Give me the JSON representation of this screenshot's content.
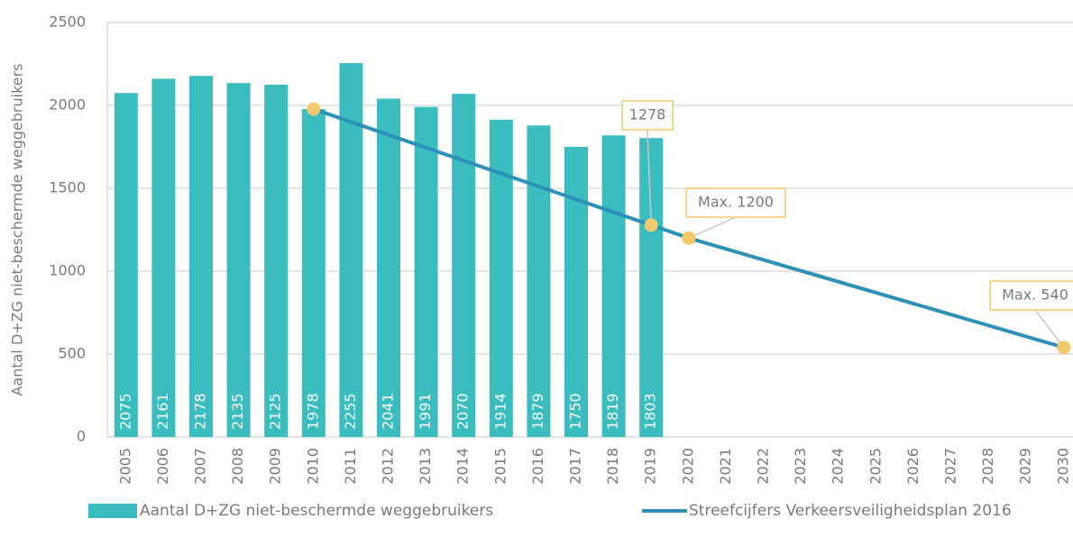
{
  "chart_data": {
    "type": "bar",
    "y_axis_label": "Aantal D+ZG niet-beschermde weggebruikers",
    "categories": [
      "2005",
      "2006",
      "2007",
      "2008",
      "2009",
      "2010",
      "2011",
      "2012",
      "2013",
      "2014",
      "2015",
      "2016",
      "2017",
      "2018",
      "2019",
      "2020",
      "2021",
      "2022",
      "2023",
      "2024",
      "2025",
      "2026",
      "2027",
      "2028",
      "2029",
      "2030"
    ],
    "series": [
      {
        "name": "Aantal D+ZG niet-beschermde weggebruikers",
        "type": "bar",
        "color": "#3bbcbf",
        "values": [
          2075,
          2161,
          2178,
          2135,
          2125,
          1978,
          2255,
          2041,
          1991,
          2070,
          1914,
          1879,
          1750,
          1819,
          1803,
          null,
          null,
          null,
          null,
          null,
          null,
          null,
          null,
          null,
          null,
          null
        ]
      },
      {
        "name": "Streefcijfers Verkeersveiligheidsplan 2016",
        "type": "line",
        "color": "#2e8fb8",
        "marker_color": "#f2c96b",
        "x": [
          "2010",
          "2019",
          "2020",
          "2030"
        ],
        "values": [
          1978,
          1278,
          1200,
          540
        ],
        "value_labels": [
          null,
          "1278",
          "Max. 1200",
          "Max. 540"
        ]
      }
    ],
    "ylim": [
      0,
      2500
    ],
    "yticks": [
      0,
      500,
      1000,
      1500,
      2000,
      2500
    ],
    "grid": true,
    "legend": "bottom"
  }
}
